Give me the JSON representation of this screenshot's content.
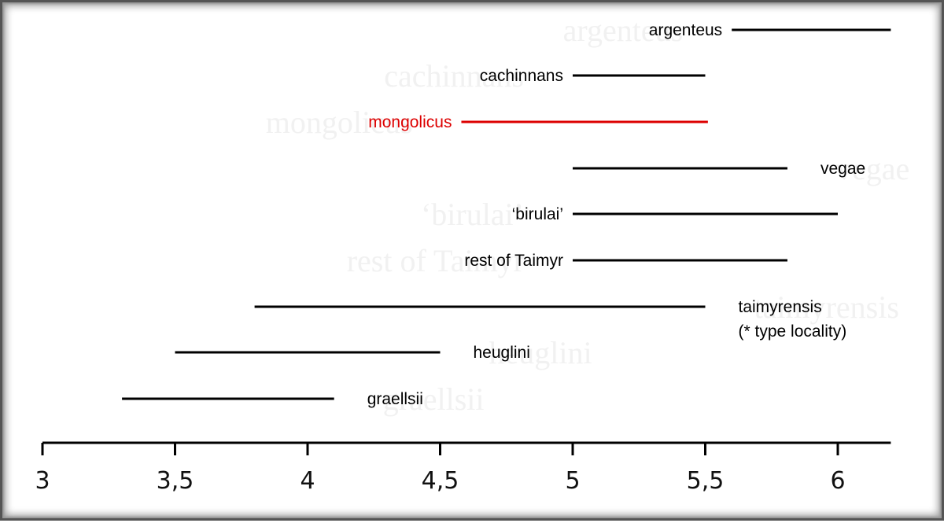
{
  "chart_data": {
    "type": "range",
    "title": "",
    "xlabel": "",
    "ylabel": "",
    "xlim": [
      3,
      6.2
    ],
    "xticks": [
      3,
      3.5,
      4,
      4.5,
      5,
      5.5,
      6
    ],
    "xtick_labels": [
      "3",
      "3,5",
      "4",
      "4,5",
      "5",
      "5,5",
      "6"
    ],
    "grid": false,
    "colors": {
      "default": "#000000",
      "highlight": "#dd0000"
    },
    "series": [
      {
        "name": "argenteus",
        "start": 5.6,
        "end": 6.2,
        "label_side": "left"
      },
      {
        "name": "cachinnans",
        "start": 5.0,
        "end": 5.5,
        "label_side": "left"
      },
      {
        "name": "mongolicus",
        "start": 4.58,
        "end": 5.51,
        "label_side": "left",
        "highlight": true
      },
      {
        "name": "vegae",
        "start": 5.0,
        "end": 5.81,
        "label_side": "right"
      },
      {
        "name": "‘birulai’",
        "start": 5.0,
        "end": 6.0,
        "label_side": "left"
      },
      {
        "name": "rest of Taimyr",
        "start": 5.0,
        "end": 5.81,
        "label_side": "left"
      },
      {
        "name": "taimyrensis",
        "name_line2": "(* type locality)",
        "start": 3.8,
        "end": 5.5,
        "label_side": "right"
      },
      {
        "name": "heuglini",
        "start": 3.5,
        "end": 4.5,
        "label_side": "right"
      },
      {
        "name": "graellsii",
        "start": 3.3,
        "end": 4.1,
        "label_side": "right"
      }
    ]
  }
}
